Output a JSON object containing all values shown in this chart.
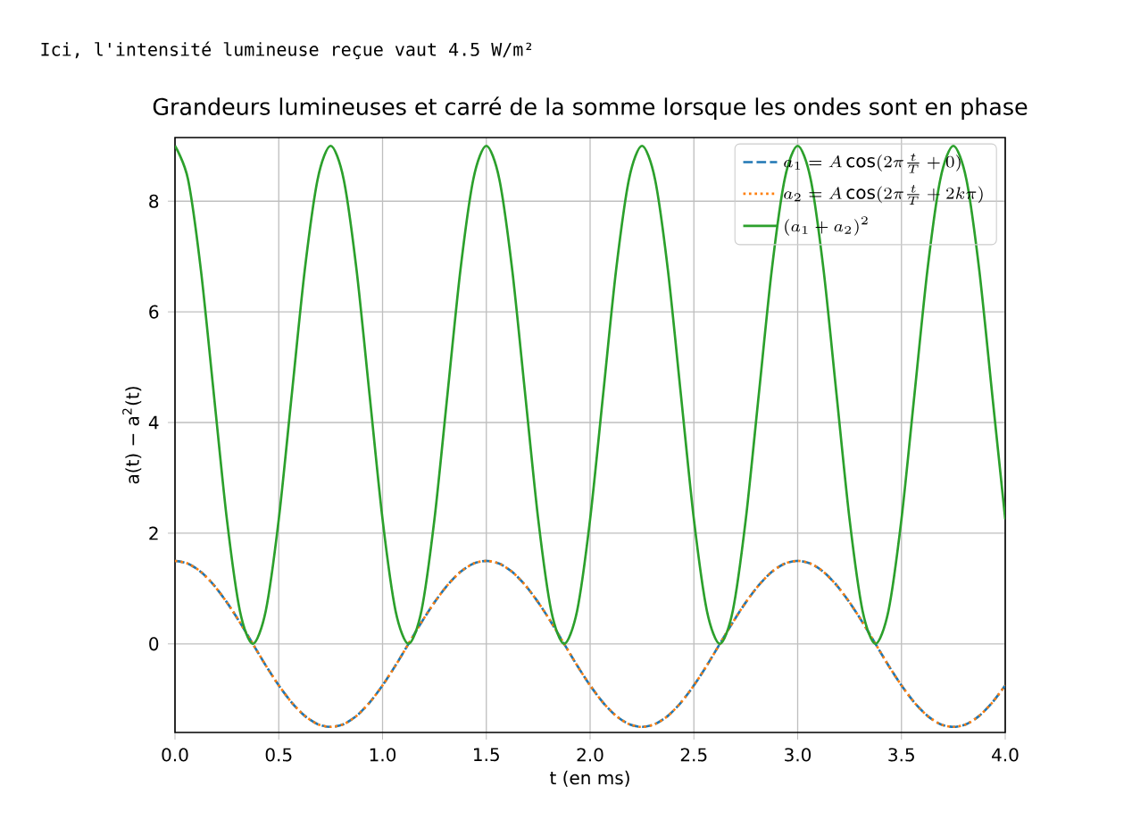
{
  "chart_data": {
    "type": "line",
    "title": "Grandeurs lumineuses et carré de la somme lorsque les ondes sont en phase",
    "xlabel": "t (en ms)",
    "ylabel": "a(t) − a$^{2}$(t)",
    "annotations": [
      "Ici, l'intensité lumineuse reçue vaut 4.5 W/m²"
    ],
    "x": [
      0,
      0.0625,
      0.125,
      0.1875,
      0.25,
      0.3125,
      0.375,
      0.4375,
      0.5,
      0.5625,
      0.625,
      0.6875,
      0.75,
      0.8125,
      0.875,
      0.9375,
      1,
      1.0625,
      1.125,
      1.1875,
      1.25,
      1.3125,
      1.375,
      1.4375,
      1.5,
      1.5625,
      1.625,
      1.6875,
      1.75,
      1.8125,
      1.875,
      1.9375,
      2,
      2.0625,
      2.125,
      2.1875,
      2.25,
      2.3125,
      2.375,
      2.4375,
      2.5,
      2.5625,
      2.625,
      2.6875,
      2.75,
      2.8125,
      2.875,
      2.9375,
      3,
      3.0625,
      3.125,
      3.1875,
      3.25,
      3.3125,
      3.375,
      3.4375,
      3.5,
      3.5625,
      3.625,
      3.6875,
      3.75,
      3.8125,
      3.875,
      3.9375,
      4
    ],
    "series": [
      {
        "name": "a_1 = A\\cos(2\\pi\\frac{t}{T}+0)",
        "color": "#1f77b4",
        "line_style": "dashed",
        "values": [
          1.5,
          1.45,
          1.3,
          1.06,
          0.75,
          0.39,
          0,
          -0.39,
          -0.75,
          -1.06,
          -1.3,
          -1.45,
          -1.5,
          -1.45,
          -1.3,
          -1.06,
          -0.75,
          -0.39,
          0,
          0.39,
          0.75,
          1.06,
          1.3,
          1.45,
          1.5,
          1.45,
          1.3,
          1.06,
          0.75,
          0.39,
          0,
          -0.39,
          -0.75,
          -1.06,
          -1.3,
          -1.45,
          -1.5,
          -1.45,
          -1.3,
          -1.06,
          -0.75,
          -0.39,
          0,
          0.39,
          0.75,
          1.06,
          1.3,
          1.45,
          1.5,
          1.45,
          1.3,
          1.06,
          0.75,
          0.39,
          0,
          -0.39,
          -0.75,
          -1.06,
          -1.3,
          -1.45,
          -1.5,
          -1.45,
          -1.3,
          -1.06,
          -0.75
        ]
      },
      {
        "name": "a_2 = A\\cos(2\\pi\\frac{t}{T}+2k\\pi)",
        "color": "#ff7f0e",
        "line_style": "dotted",
        "values": [
          1.5,
          1.45,
          1.3,
          1.06,
          0.75,
          0.39,
          0,
          -0.39,
          -0.75,
          -1.06,
          -1.3,
          -1.45,
          -1.5,
          -1.45,
          -1.3,
          -1.06,
          -0.75,
          -0.39,
          0,
          0.39,
          0.75,
          1.06,
          1.3,
          1.45,
          1.5,
          1.45,
          1.3,
          1.06,
          0.75,
          0.39,
          0,
          -0.39,
          -0.75,
          -1.06,
          -1.3,
          -1.45,
          -1.5,
          -1.45,
          -1.3,
          -1.06,
          -0.75,
          -0.39,
          0,
          0.39,
          0.75,
          1.06,
          1.3,
          1.45,
          1.5,
          1.45,
          1.3,
          1.06,
          0.75,
          0.39,
          0,
          -0.39,
          -0.75,
          -1.06,
          -1.3,
          -1.45,
          -1.5,
          -1.45,
          -1.3,
          -1.06,
          -0.75
        ]
      },
      {
        "name": "(a_1 + a_2)^2",
        "color": "#2ca02c",
        "line_style": "solid",
        "values": [
          9,
          8.4,
          6.75,
          4.5,
          2.25,
          0.6,
          0,
          0.6,
          2.25,
          4.5,
          6.75,
          8.4,
          9,
          8.4,
          6.75,
          4.5,
          2.25,
          0.6,
          0,
          0.6,
          2.25,
          4.5,
          6.75,
          8.4,
          9,
          8.4,
          6.75,
          4.5,
          2.25,
          0.6,
          0,
          0.6,
          2.25,
          4.5,
          6.75,
          8.4,
          9,
          8.4,
          6.75,
          4.5,
          2.25,
          0.6,
          0,
          0.6,
          2.25,
          4.5,
          6.75,
          8.4,
          9,
          8.4,
          6.75,
          4.5,
          2.25,
          0.6,
          0,
          0.6,
          2.25,
          4.5,
          6.75,
          8.4,
          9,
          8.4,
          6.75,
          4.5,
          2.25
        ]
      }
    ],
    "xlim": [
      0,
      4
    ],
    "xticks": [
      {
        "value": 0,
        "label": "0.0"
      },
      {
        "value": 0.5,
        "label": "0.5"
      },
      {
        "value": 1,
        "label": "1.0"
      },
      {
        "value": 1.5,
        "label": "1.5"
      },
      {
        "value": 2,
        "label": "2.0"
      },
      {
        "value": 2.5,
        "label": "2.5"
      },
      {
        "value": 3,
        "label": "3.0"
      },
      {
        "value": 3.5,
        "label": "3.5"
      },
      {
        "value": 4,
        "label": "4.0"
      }
    ],
    "ylim": [
      -1.6,
      9.15
    ],
    "yticks": [
      0,
      2,
      4,
      6,
      8
    ],
    "grid": true,
    "legend": "top right"
  }
}
